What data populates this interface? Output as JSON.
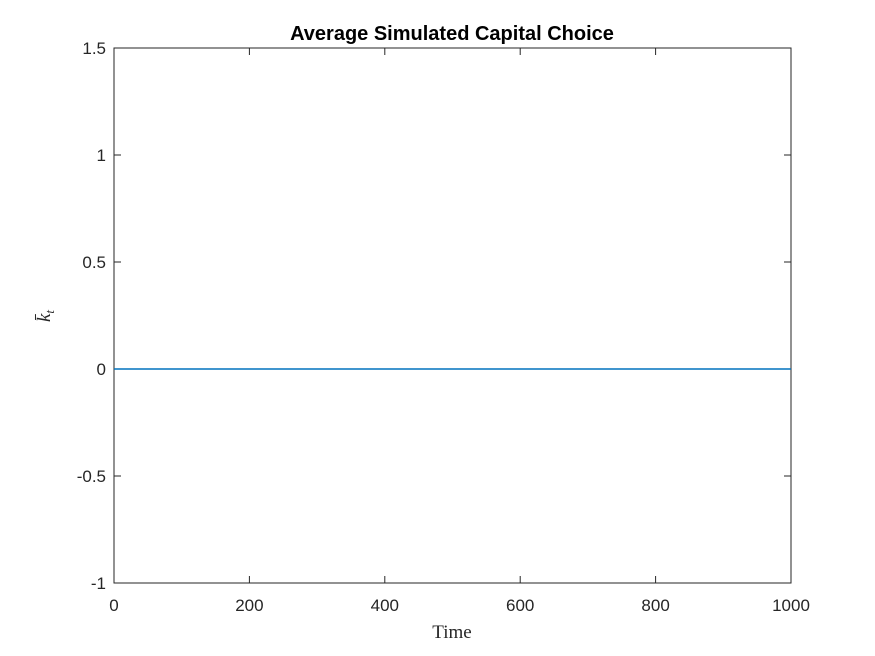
{
  "chart_data": {
    "type": "line",
    "title": "Average Simulated Capital Choice",
    "xlabel": "Time",
    "ylabel": "k̄",
    "ylabel_sub": "t",
    "xlim": [
      0,
      1000
    ],
    "ylim": [
      -1,
      1.5
    ],
    "xticks": [
      0,
      200,
      400,
      600,
      800,
      1000
    ],
    "xtick_labels": [
      "0",
      "200",
      "400",
      "600",
      "800",
      "1000"
    ],
    "yticks": [
      -1,
      -0.5,
      0,
      0.5,
      1,
      1.5
    ],
    "ytick_labels": [
      "-1",
      "-0.5",
      "0",
      "0.5",
      "1",
      "1.5"
    ],
    "grid": false,
    "series": [
      {
        "color": "#0072BD",
        "x": [
          0,
          1000
        ],
        "y": [
          0,
          0
        ]
      }
    ]
  }
}
